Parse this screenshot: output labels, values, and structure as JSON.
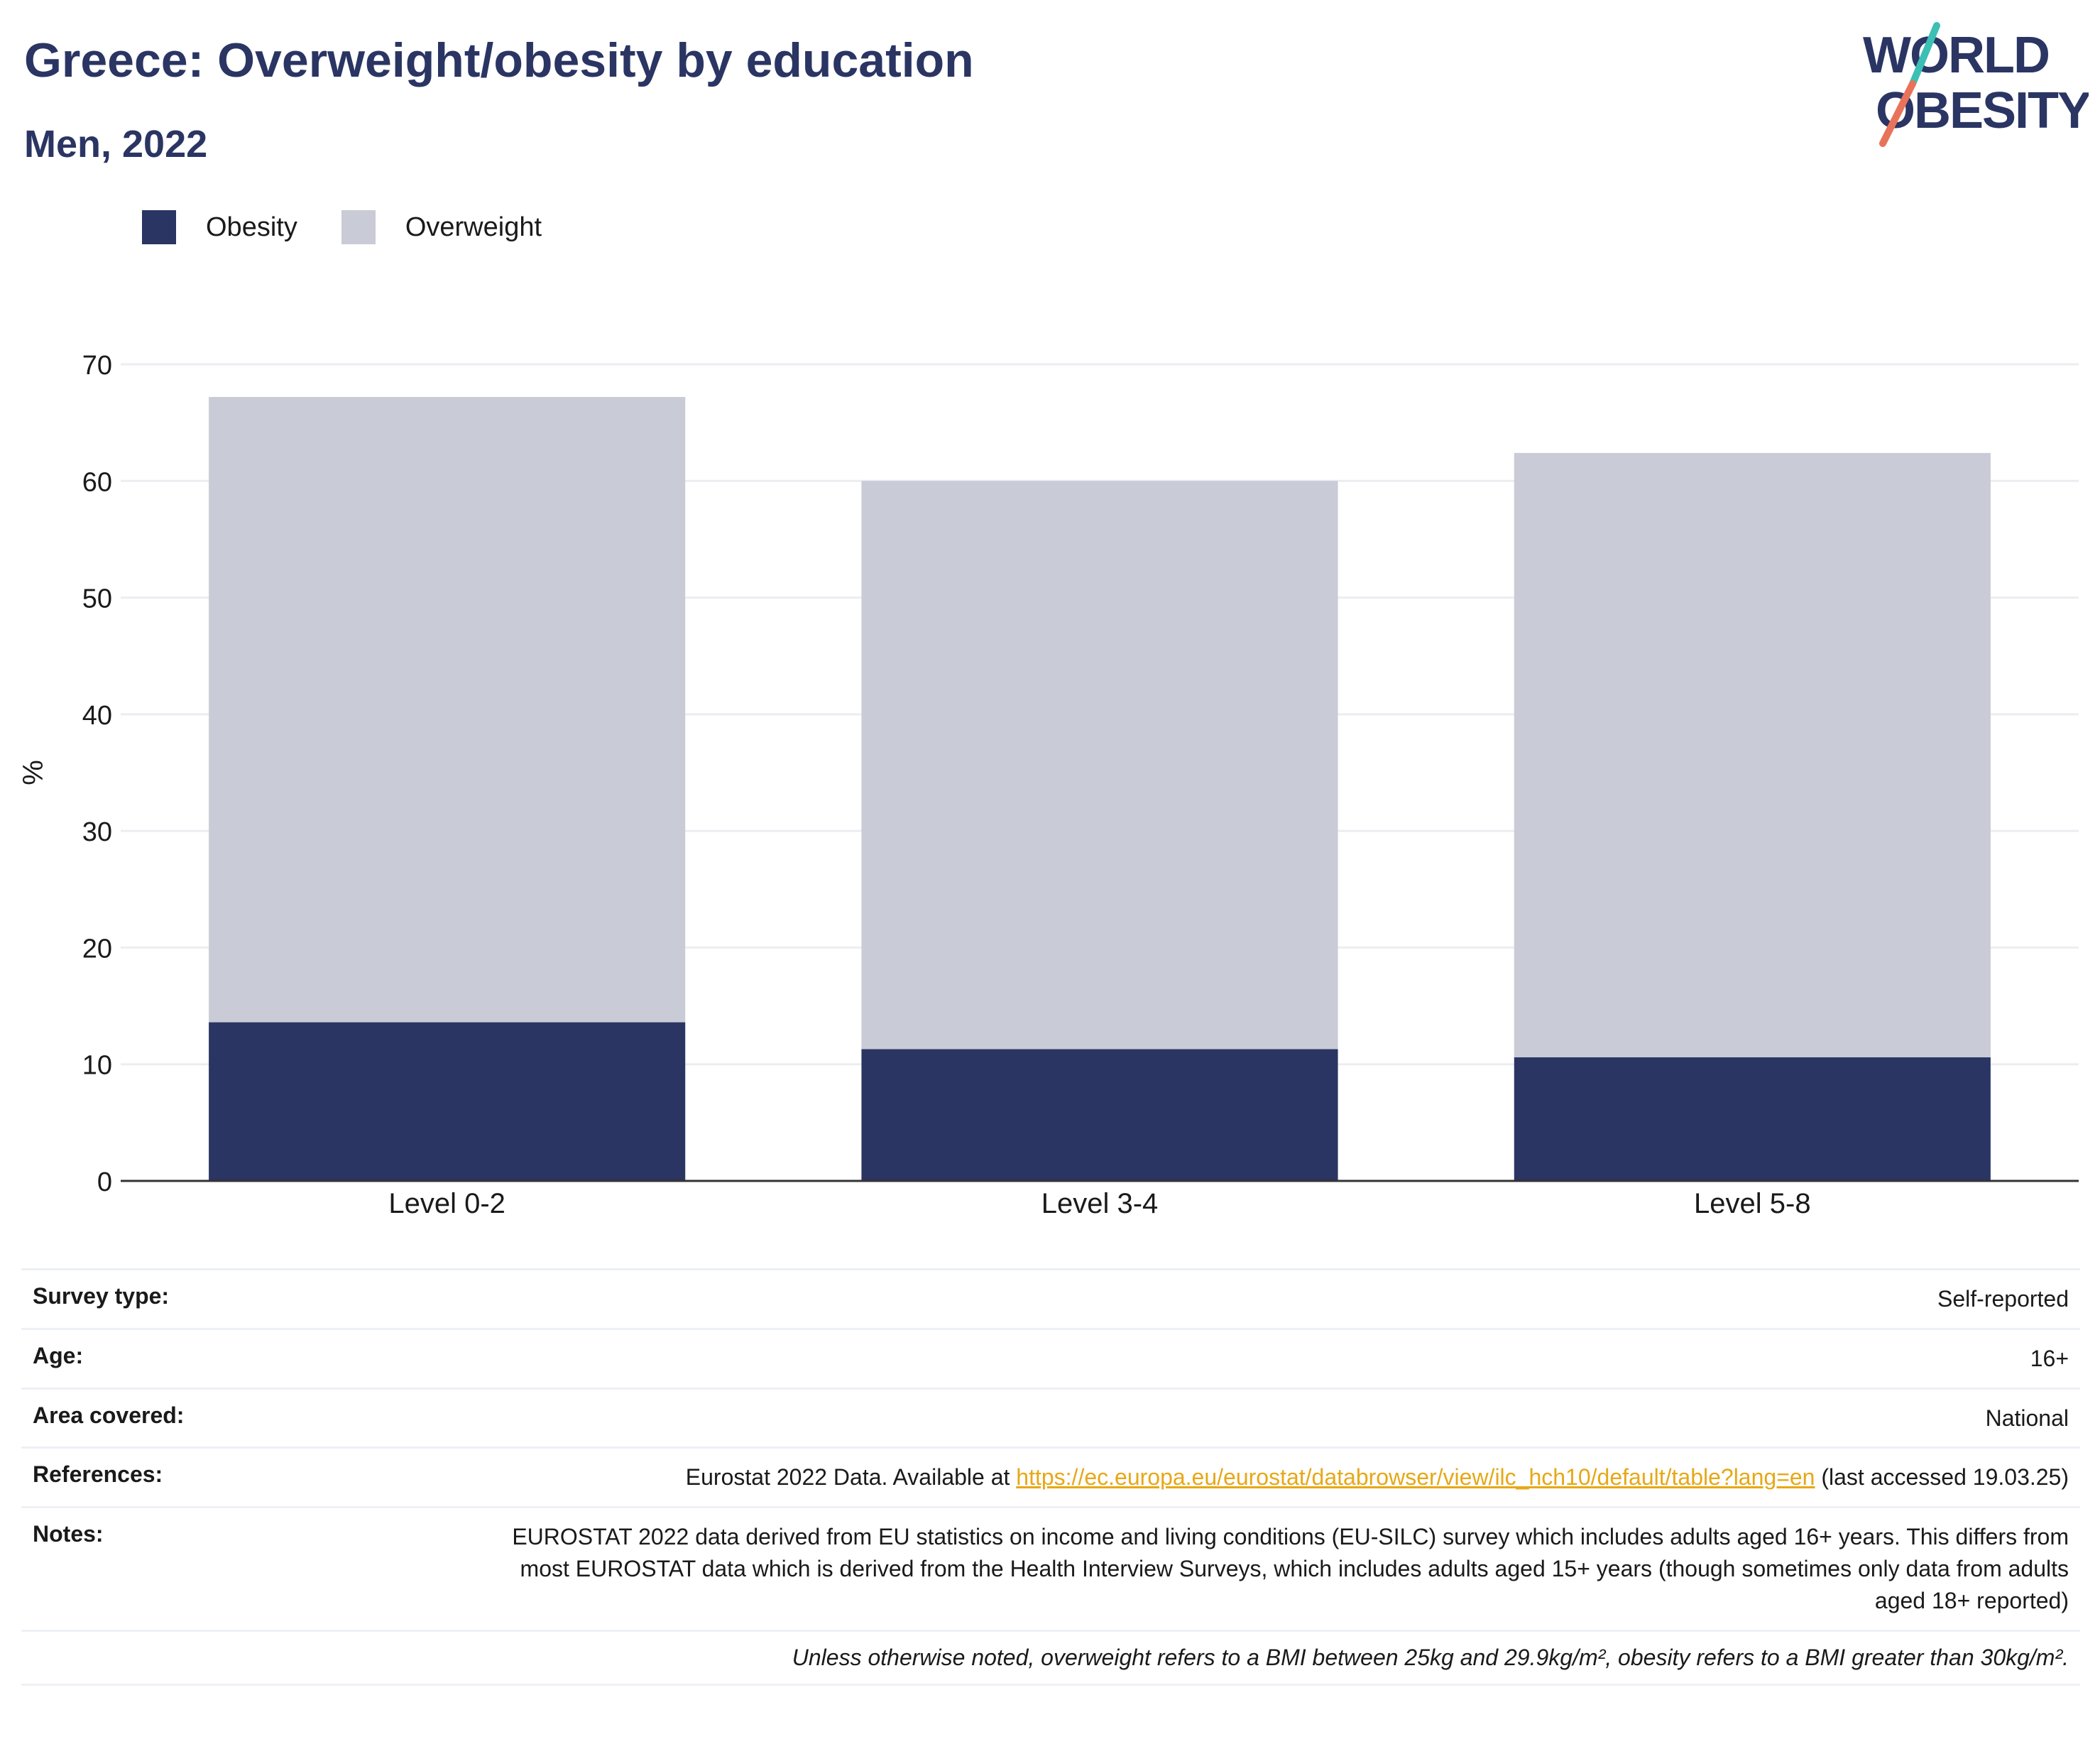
{
  "header": {
    "title": "Greece: Overweight/obesity by education",
    "subtitle": "Men, 2022"
  },
  "logo": {
    "line1": "WORLD",
    "line2": "OBESITY"
  },
  "colors": {
    "obesity": "#2a3563",
    "overweight": "#c9cbd6",
    "title": "#2a3563",
    "link": "#e6a817",
    "logo_slash_top": "#3cbfb4",
    "logo_slash_bottom": "#e8735a"
  },
  "legend": {
    "items": [
      "Obesity",
      "Overweight"
    ]
  },
  "chart_data": {
    "type": "bar",
    "stacked": true,
    "categories": [
      "Level 0-2",
      "Level 3-4",
      "Level 5-8"
    ],
    "series": [
      {
        "name": "Obesity",
        "values": [
          13.6,
          11.3,
          10.6
        ]
      },
      {
        "name": "Overweight",
        "values": [
          53.6,
          48.7,
          51.8
        ]
      }
    ],
    "ylabel": "%",
    "ylim": [
      0,
      70
    ],
    "yticks": [
      0,
      10,
      20,
      30,
      40,
      50,
      60,
      70
    ],
    "grid": true,
    "legend_position": "top-left"
  },
  "meta": {
    "survey_type": {
      "label": "Survey type:",
      "value": "Self-reported"
    },
    "age": {
      "label": "Age:",
      "value": "16+"
    },
    "area": {
      "label": "Area covered:",
      "value": "National"
    },
    "references": {
      "label": "References:",
      "prefix": "Eurostat 2022 Data. Available at ",
      "link": "https://ec.europa.eu/eurostat/databrowser/view/ilc_hch10/default/table?lang=en",
      "suffix": " (last accessed 19.03.25)"
    },
    "notes": {
      "label": "Notes:",
      "value": "EUROSTAT 2022 data derived from EU statistics on income and living conditions (EU-SILC) survey which includes adults aged 16+ years. This differs from most EUROSTAT data which is derived from the Health Interview Surveys, which includes adults aged 15+ years (though sometimes only data from adults aged 18+ reported)"
    },
    "footnote": "Unless otherwise noted, overweight refers to a BMI between 25kg and 29.9kg/m², obesity refers to a BMI greater than 30kg/m²."
  }
}
